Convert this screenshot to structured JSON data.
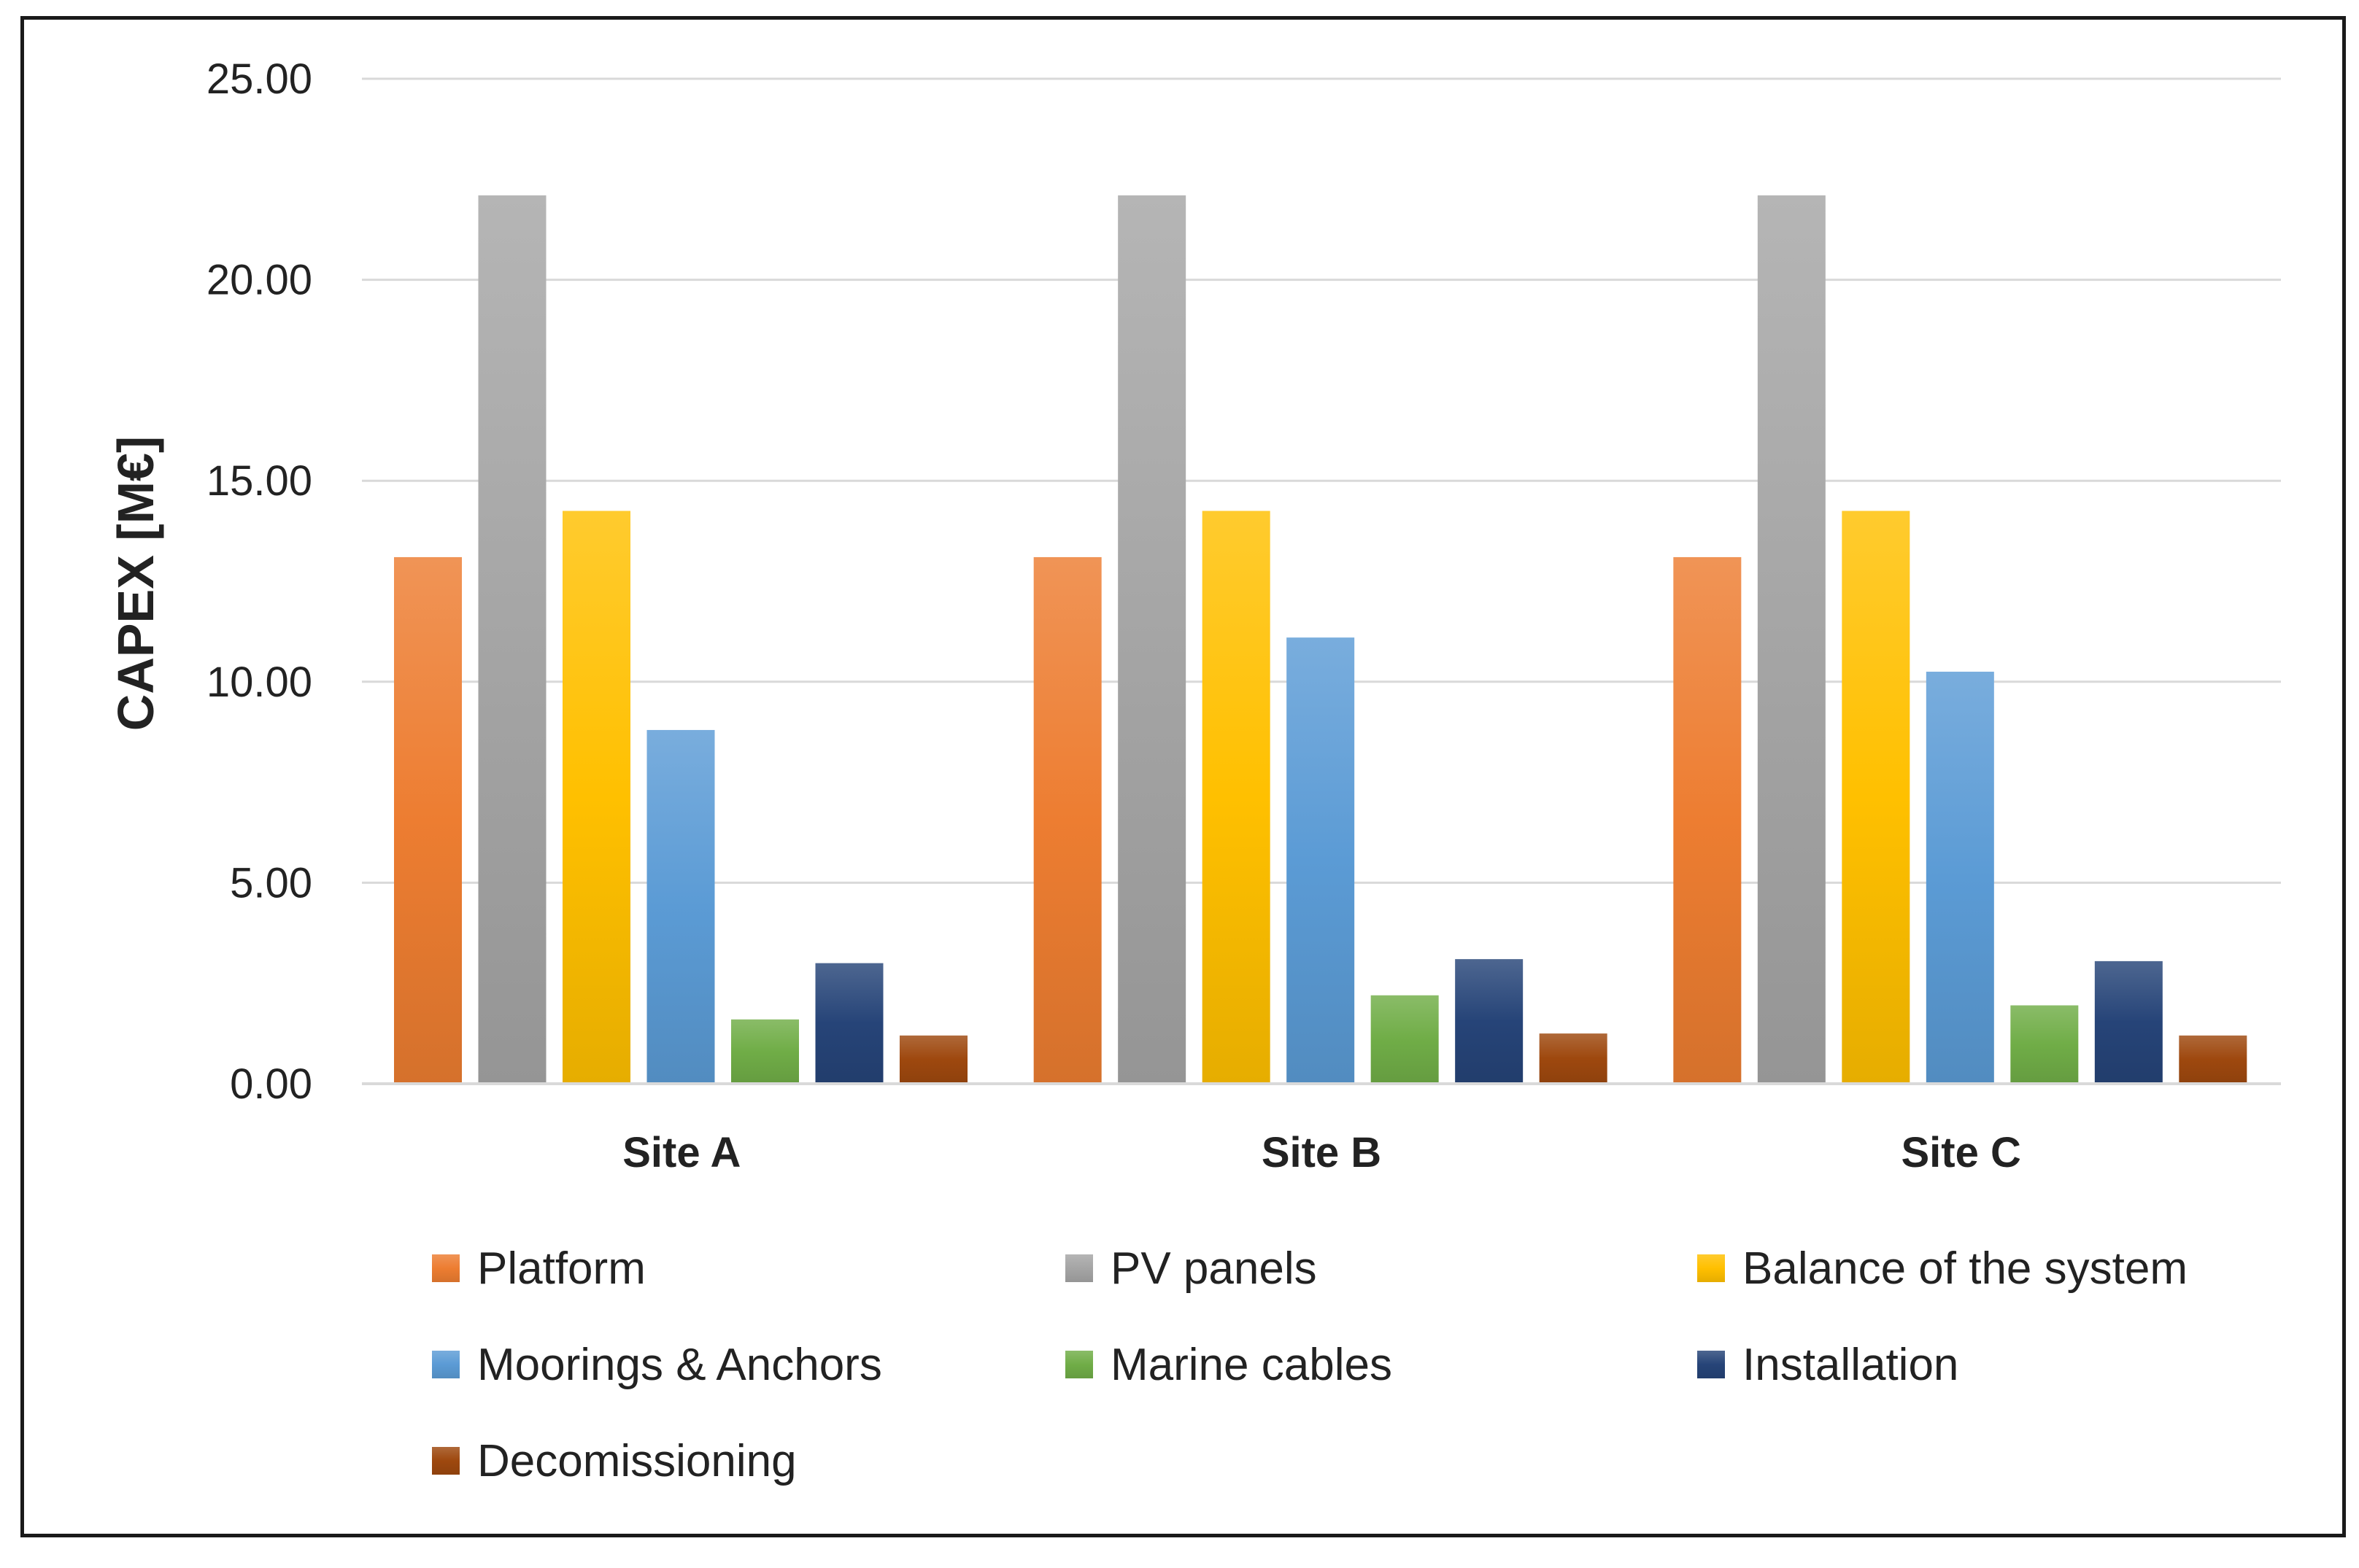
{
  "chart_data": {
    "type": "bar",
    "title": "",
    "xlabel": "",
    "ylabel": "CAPEX [M€]",
    "ylim": [
      0,
      25
    ],
    "yticks": [
      0,
      5,
      10,
      15,
      20,
      25
    ],
    "ytick_labels": [
      "0.00",
      "5.00",
      "10.00",
      "15.00",
      "20.00",
      "25.00"
    ],
    "grid": true,
    "legend_position": "bottom",
    "categories": [
      "Site A",
      "Site B",
      "Site C"
    ],
    "series": [
      {
        "name": "Platform",
        "color": "#ED7D31",
        "values": [
          13.1,
          13.1,
          13.1
        ]
      },
      {
        "name": "PV panels",
        "color": "#A5A5A5",
        "values": [
          22.1,
          22.1,
          22.1
        ]
      },
      {
        "name": "Balance of the system",
        "color": "#FFC000",
        "values": [
          14.25,
          14.25,
          14.25
        ]
      },
      {
        "name": "Moorings & Anchors",
        "color": "#5B9BD5",
        "values": [
          8.8,
          11.1,
          10.25
        ]
      },
      {
        "name": "Marine cables",
        "color": "#70AD47",
        "values": [
          1.6,
          2.2,
          1.95
        ]
      },
      {
        "name": "Installation",
        "color": "#264478",
        "values": [
          3.0,
          3.1,
          3.05
        ]
      },
      {
        "name": "Decomissioning",
        "color": "#9E480E",
        "values": [
          1.2,
          1.25,
          1.2
        ]
      }
    ]
  }
}
